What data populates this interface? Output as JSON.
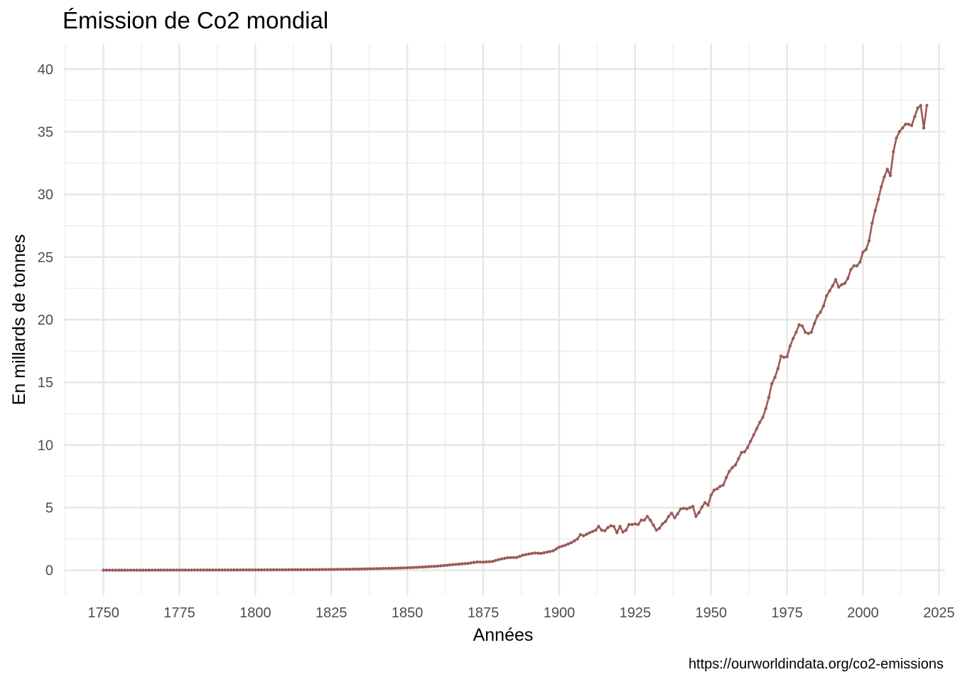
{
  "chart_data": {
    "type": "line",
    "title": "Émission de Co2 mondial",
    "xlabel": "Années",
    "ylabel": "En millards de tonnes",
    "caption": "https://ourworldindata.org/co2-emissions",
    "xlim": [
      1737,
      2027
    ],
    "ylim": [
      -2,
      42
    ],
    "x_ticks": [
      1750,
      1775,
      1800,
      1825,
      1850,
      1875,
      1900,
      1925,
      1950,
      1975,
      2000,
      2025
    ],
    "y_ticks": [
      0,
      5,
      10,
      15,
      20,
      25,
      30,
      35,
      40
    ],
    "grid": true,
    "line_color": "#9c5a58",
    "series": [
      {
        "points": [
          [
            1750,
            0.01
          ],
          [
            1760,
            0.01
          ],
          [
            1770,
            0.015
          ],
          [
            1780,
            0.02
          ],
          [
            1790,
            0.025
          ],
          [
            1800,
            0.03
          ],
          [
            1805,
            0.035
          ],
          [
            1810,
            0.04
          ],
          [
            1815,
            0.045
          ],
          [
            1820,
            0.05
          ],
          [
            1825,
            0.065
          ],
          [
            1830,
            0.08
          ],
          [
            1835,
            0.1
          ],
          [
            1840,
            0.13
          ],
          [
            1845,
            0.16
          ],
          [
            1850,
            0.2
          ],
          [
            1855,
            0.26
          ],
          [
            1860,
            0.33
          ],
          [
            1865,
            0.45
          ],
          [
            1870,
            0.55
          ],
          [
            1873,
            0.66
          ],
          [
            1875,
            0.65
          ],
          [
            1878,
            0.7
          ],
          [
            1880,
            0.85
          ],
          [
            1883,
            1.0
          ],
          [
            1886,
            1.02
          ],
          [
            1888,
            1.2
          ],
          [
            1890,
            1.3
          ],
          [
            1892,
            1.38
          ],
          [
            1894,
            1.35
          ],
          [
            1896,
            1.45
          ],
          [
            1898,
            1.55
          ],
          [
            1900,
            1.85
          ],
          [
            1902,
            2.0
          ],
          [
            1904,
            2.2
          ],
          [
            1906,
            2.5
          ],
          [
            1907,
            2.85
          ],
          [
            1908,
            2.75
          ],
          [
            1910,
            3.0
          ],
          [
            1912,
            3.2
          ],
          [
            1913,
            3.5
          ],
          [
            1914,
            3.2
          ],
          [
            1915,
            3.15
          ],
          [
            1916,
            3.4
          ],
          [
            1917,
            3.55
          ],
          [
            1918,
            3.5
          ],
          [
            1919,
            3.0
          ],
          [
            1920,
            3.5
          ],
          [
            1921,
            3.05
          ],
          [
            1922,
            3.2
          ],
          [
            1923,
            3.65
          ],
          [
            1924,
            3.65
          ],
          [
            1925,
            3.7
          ],
          [
            1926,
            3.65
          ],
          [
            1927,
            4.0
          ],
          [
            1928,
            4.0
          ],
          [
            1929,
            4.3
          ],
          [
            1930,
            4.0
          ],
          [
            1931,
            3.6
          ],
          [
            1932,
            3.2
          ],
          [
            1933,
            3.35
          ],
          [
            1934,
            3.7
          ],
          [
            1935,
            3.9
          ],
          [
            1936,
            4.3
          ],
          [
            1937,
            4.55
          ],
          [
            1938,
            4.2
          ],
          [
            1939,
            4.5
          ],
          [
            1940,
            4.9
          ],
          [
            1941,
            4.95
          ],
          [
            1942,
            4.9
          ],
          [
            1943,
            5.0
          ],
          [
            1944,
            5.1
          ],
          [
            1945,
            4.3
          ],
          [
            1946,
            4.6
          ],
          [
            1947,
            5.05
          ],
          [
            1948,
            5.4
          ],
          [
            1949,
            5.2
          ],
          [
            1950,
            6.0
          ],
          [
            1951,
            6.4
          ],
          [
            1952,
            6.5
          ],
          [
            1953,
            6.7
          ],
          [
            1954,
            6.8
          ],
          [
            1955,
            7.4
          ],
          [
            1956,
            7.9
          ],
          [
            1957,
            8.2
          ],
          [
            1958,
            8.4
          ],
          [
            1959,
            8.9
          ],
          [
            1960,
            9.4
          ],
          [
            1961,
            9.45
          ],
          [
            1962,
            9.8
          ],
          [
            1963,
            10.3
          ],
          [
            1964,
            10.8
          ],
          [
            1965,
            11.3
          ],
          [
            1966,
            11.8
          ],
          [
            1967,
            12.2
          ],
          [
            1968,
            12.9
          ],
          [
            1969,
            13.8
          ],
          [
            1970,
            14.9
          ],
          [
            1971,
            15.4
          ],
          [
            1972,
            16.1
          ],
          [
            1973,
            17.1
          ],
          [
            1974,
            17.0
          ],
          [
            1975,
            17.05
          ],
          [
            1976,
            17.9
          ],
          [
            1977,
            18.5
          ],
          [
            1978,
            19.0
          ],
          [
            1979,
            19.6
          ],
          [
            1980,
            19.5
          ],
          [
            1981,
            19.0
          ],
          [
            1982,
            18.9
          ],
          [
            1983,
            19.0
          ],
          [
            1984,
            19.7
          ],
          [
            1985,
            20.3
          ],
          [
            1986,
            20.6
          ],
          [
            1987,
            21.1
          ],
          [
            1988,
            21.9
          ],
          [
            1989,
            22.3
          ],
          [
            1990,
            22.7
          ],
          [
            1991,
            23.2
          ],
          [
            1992,
            22.6
          ],
          [
            1993,
            22.8
          ],
          [
            1994,
            22.9
          ],
          [
            1995,
            23.3
          ],
          [
            1996,
            24.0
          ],
          [
            1997,
            24.3
          ],
          [
            1998,
            24.3
          ],
          [
            1999,
            24.6
          ],
          [
            2000,
            25.4
          ],
          [
            2001,
            25.6
          ],
          [
            2002,
            26.3
          ],
          [
            2003,
            27.7
          ],
          [
            2004,
            28.7
          ],
          [
            2005,
            29.6
          ],
          [
            2006,
            30.6
          ],
          [
            2007,
            31.4
          ],
          [
            2008,
            32.0
          ],
          [
            2009,
            31.5
          ],
          [
            2010,
            33.4
          ],
          [
            2011,
            34.5
          ],
          [
            2012,
            35.0
          ],
          [
            2013,
            35.3
          ],
          [
            2014,
            35.6
          ],
          [
            2015,
            35.6
          ],
          [
            2016,
            35.5
          ],
          [
            2017,
            36.2
          ],
          [
            2018,
            36.9
          ],
          [
            2019,
            37.1
          ],
          [
            2020,
            35.3
          ],
          [
            2021,
            37.1
          ]
        ]
      }
    ]
  }
}
